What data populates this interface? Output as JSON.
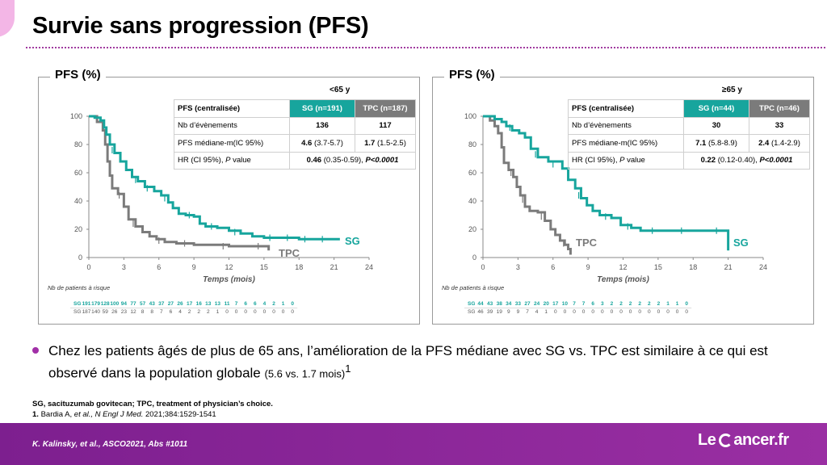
{
  "title": "Survie sans progression (PFS)",
  "bullet": {
    "main": "Chez les patients âgés de plus de 65  ans, l’amélioration de la PFS médiane avec SG vs. TPC  est similaire à ce qui est observé dans la population globale",
    "small": "(5.6 vs. 1.7 mois)",
    "sup": "1"
  },
  "abbreviations": "SG, sacituzumab govitecan; TPC, treatment of physician’s choice.",
  "reference": {
    "num": "1.",
    "authors": "Bardia A,",
    "etal": "et al.,",
    "journal": "N Engl J Med.",
    "rest": "2021;384:1529-1541"
  },
  "footer": {
    "citation": "K. Kalinsky, et al.,  ASCO2021, Abs #1011",
    "logo_left": "Le",
    "logo_right": "ancer.fr"
  },
  "colors": {
    "sg": "#17a59d",
    "tpc": "#7b7b7b",
    "footer": "#8a2a9a",
    "accent": "#a13ba0"
  },
  "panels": [
    {
      "panel_title": "PFS (%)",
      "subgroup": "<65 y",
      "table": {
        "header": [
          "PFS (centralisée)",
          "SG (n=191)",
          "TPC (n=187)"
        ],
        "events": {
          "label": "Nb d’évènements",
          "sg": "136",
          "tpc": "117"
        },
        "median": {
          "label": "PFS médiane-m(IC  95%)",
          "sg_val": "4.6",
          "sg_ci": "(3.7-5.7)",
          "tpc_val": "1.7",
          "tpc_ci": "(1.5-2.5)"
        },
        "hr": {
          "label": "HR (CI 95%),",
          "label_p": "P",
          "label_rest": "value",
          "val": "0.46",
          "ci": "(0.35-0.59),",
          "p": "P<0.0001"
        }
      }
    },
    {
      "panel_title": "PFS (%)",
      "subgroup": "≥65 y",
      "table": {
        "header": [
          "PFS (centralisée)",
          "SG (n=44)",
          "TPC (n=46)"
        ],
        "events": {
          "label": "Nb d’évènements",
          "sg": "30",
          "tpc": "33"
        },
        "median": {
          "label": "PFS médiane-m(IC  95%)",
          "sg_val": "7.1",
          "sg_ci": "(5.8-8.9)",
          "tpc_val": "2.4",
          "tpc_ci": "(1.4-2.9)"
        },
        "hr": {
          "label": "HR (CI 95%),",
          "label_p": "P",
          "label_rest": "value",
          "val": "0.22",
          "ci": "(0.12-0.40),",
          "p": "P<0.0001"
        }
      }
    }
  ],
  "chart_data": [
    {
      "type": "line",
      "xlabel": "Temps (mois)",
      "ylabel": "PFS (%)",
      "xlim": [
        0,
        24
      ],
      "ylim": [
        0,
        100
      ],
      "x_ticks": [
        0,
        3,
        6,
        9,
        12,
        15,
        18,
        21,
        24
      ],
      "y_ticks": [
        0,
        20,
        40,
        60,
        80,
        100
      ],
      "grid": false,
      "series": [
        {
          "name": "SG",
          "color": "#17a59d",
          "points": [
            [
              0,
              100
            ],
            [
              0.5,
              99
            ],
            [
              1,
              97
            ],
            [
              1.3,
              92
            ],
            [
              1.5,
              87
            ],
            [
              1.8,
              80
            ],
            [
              2.2,
              74
            ],
            [
              2.7,
              68
            ],
            [
              3.2,
              62
            ],
            [
              3.7,
              57
            ],
            [
              4.2,
              54
            ],
            [
              4.8,
              50
            ],
            [
              5.6,
              47
            ],
            [
              6.2,
              44
            ],
            [
              6.8,
              39
            ],
            [
              7.2,
              35
            ],
            [
              7.7,
              31
            ],
            [
              8.3,
              30
            ],
            [
              9.0,
              29
            ],
            [
              9.5,
              24
            ],
            [
              10,
              22
            ],
            [
              11,
              21
            ],
            [
              12,
              19
            ],
            [
              13,
              17
            ],
            [
              14,
              15
            ],
            [
              15,
              14
            ],
            [
              16.5,
              14
            ],
            [
              18,
              13
            ],
            [
              19.5,
              13
            ],
            [
              21,
              13
            ],
            [
              21.5,
              13
            ]
          ],
          "censor": [
            [
              2.0,
              76
            ],
            [
              4.0,
              55
            ],
            [
              5.0,
              49
            ],
            [
              6.5,
              42
            ],
            [
              8.6,
              30
            ],
            [
              10.5,
              22
            ],
            [
              12.5,
              18
            ],
            [
              15.5,
              14
            ],
            [
              17,
              14
            ],
            [
              18.5,
              13
            ],
            [
              20,
              13
            ]
          ]
        },
        {
          "name": "TPC",
          "color": "#7b7b7b",
          "points": [
            [
              0,
              100
            ],
            [
              0.7,
              96
            ],
            [
              1.2,
              90
            ],
            [
              1.4,
              80
            ],
            [
              1.6,
              68
            ],
            [
              1.8,
              58
            ],
            [
              2.0,
              49
            ],
            [
              2.5,
              45
            ],
            [
              3.0,
              36
            ],
            [
              3.4,
              27
            ],
            [
              4,
              22
            ],
            [
              4.6,
              18
            ],
            [
              5.2,
              15
            ],
            [
              5.8,
              13
            ],
            [
              6.5,
              11
            ],
            [
              7.5,
              10
            ],
            [
              9,
              9
            ],
            [
              10.5,
              9
            ],
            [
              12,
              8
            ],
            [
              13.5,
              8
            ],
            [
              15,
              8
            ],
            [
              15.4,
              5
            ]
          ],
          "censor": [
            [
              2.6,
              44
            ],
            [
              3.8,
              24
            ],
            [
              6.0,
              12
            ],
            [
              8.2,
              10
            ],
            [
              11.5,
              8
            ],
            [
              14.5,
              8
            ]
          ]
        }
      ],
      "annotations": [
        "SG",
        "TPC"
      ],
      "risk": {
        "title": "Nb de patients à risque",
        "sg": [
          "191",
          "179",
          "128",
          "100",
          "94",
          "77",
          "57",
          "43",
          "37",
          "27",
          "26",
          "17",
          "16",
          "13",
          "13",
          "11",
          "7",
          "6",
          "6",
          "4",
          "2",
          "1",
          "0"
        ],
        "tpc": [
          "187",
          "140",
          "59",
          "26",
          "23",
          "12",
          "8",
          "8",
          "7",
          "6",
          "4",
          "2",
          "2",
          "2",
          "1",
          "0",
          "0",
          "0",
          "0",
          "0",
          "0",
          "0",
          "0"
        ]
      }
    },
    {
      "type": "line",
      "xlabel": "Temps (mois)",
      "ylabel": "PFS (%)",
      "xlim": [
        0,
        24
      ],
      "ylim": [
        0,
        100
      ],
      "x_ticks": [
        0,
        3,
        6,
        9,
        12,
        15,
        18,
        21,
        24
      ],
      "y_ticks": [
        0,
        20,
        40,
        60,
        80,
        100
      ],
      "grid": false,
      "series": [
        {
          "name": "SG",
          "color": "#17a59d",
          "points": [
            [
              0,
              100
            ],
            [
              1,
              98
            ],
            [
              1.6,
              96
            ],
            [
              2.0,
              93
            ],
            [
              2.5,
              90
            ],
            [
              3.1,
              88
            ],
            [
              3.6,
              85
            ],
            [
              4.1,
              77
            ],
            [
              4.7,
              71
            ],
            [
              5.6,
              68
            ],
            [
              6.8,
              63
            ],
            [
              7.3,
              55
            ],
            [
              7.9,
              49
            ],
            [
              8.4,
              42
            ],
            [
              8.9,
              37
            ],
            [
              9.4,
              33
            ],
            [
              10,
              30
            ],
            [
              11,
              28
            ],
            [
              11.8,
              23
            ],
            [
              12.7,
              21
            ],
            [
              13.5,
              19
            ],
            [
              16,
              19
            ],
            [
              18,
              19
            ],
            [
              20,
              19
            ],
            [
              21,
              5
            ]
          ],
          "censor": [
            [
              2.3,
              92
            ],
            [
              4.5,
              73
            ],
            [
              6.0,
              66
            ],
            [
              8.2,
              44
            ],
            [
              10.5,
              29
            ],
            [
              12.4,
              22
            ],
            [
              14.5,
              19
            ],
            [
              17,
              19
            ],
            [
              20,
              19
            ]
          ]
        },
        {
          "name": "TPC",
          "color": "#7b7b7b",
          "points": [
            [
              0,
              100
            ],
            [
              0.6,
              97
            ],
            [
              1.0,
              93
            ],
            [
              1.3,
              88
            ],
            [
              1.6,
              78
            ],
            [
              1.8,
              67
            ],
            [
              2.2,
              62
            ],
            [
              2.6,
              57
            ],
            [
              2.9,
              50
            ],
            [
              3.2,
              44
            ],
            [
              3.6,
              36
            ],
            [
              4.0,
              33
            ],
            [
              4.7,
              32
            ],
            [
              5.3,
              26
            ],
            [
              5.8,
              20
            ],
            [
              6.2,
              16
            ],
            [
              6.6,
              12
            ],
            [
              7.0,
              9
            ],
            [
              7.3,
              6
            ],
            [
              7.5,
              2
            ]
          ],
          "censor": [
            [
              2.4,
              60
            ],
            [
              3.4,
              41
            ],
            [
              5.0,
              29
            ],
            [
              6.9,
              10
            ]
          ]
        }
      ],
      "annotations": [
        "TPC",
        "SG"
      ],
      "risk": {
        "title": "Nb de patients à risque",
        "sg": [
          "44",
          "43",
          "38",
          "34",
          "33",
          "27",
          "24",
          "20",
          "17",
          "10",
          "7",
          "7",
          "6",
          "3",
          "2",
          "2",
          "2",
          "2",
          "2",
          "2",
          "1",
          "1",
          "0"
        ],
        "tpc": [
          "46",
          "39",
          "19",
          "9",
          "9",
          "7",
          "4",
          "1",
          "0",
          "0",
          "0",
          "0",
          "0",
          "0",
          "0",
          "0",
          "0",
          "0",
          "0",
          "0",
          "0",
          "0",
          "0"
        ]
      }
    }
  ]
}
